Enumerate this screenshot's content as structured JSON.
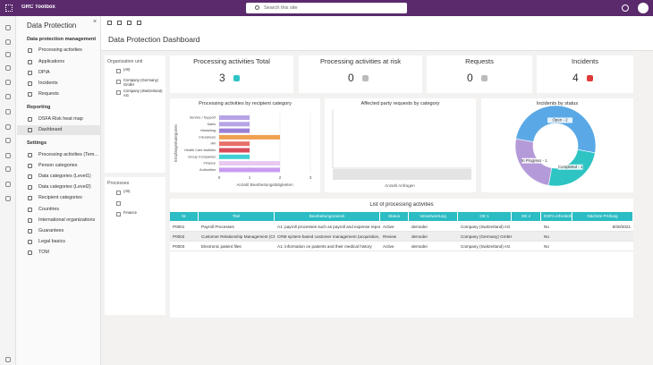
{
  "app": {
    "name": "GRC Toolbox",
    "search_placeholder": "Search this site"
  },
  "nav": {
    "title": "Data Protection",
    "sections": [
      {
        "heading": "Data protection management",
        "items": [
          "Processing activities",
          "Applications",
          "DPIA",
          "Incidents",
          "Requests"
        ]
      },
      {
        "heading": "Reporting",
        "items": [
          "DSFA Risk heat map",
          "Dashboard"
        ]
      },
      {
        "heading": "Settings",
        "items": [
          "Processing activities (Tem...",
          "Person categories",
          "Data categories (Level1)",
          "Data categories (Level2)",
          "Recipient categories",
          "Countries",
          "International organizations",
          "Guarantees",
          "Legal basics",
          "TOM"
        ]
      }
    ]
  },
  "page": {
    "title": "Data Protection Dashboard"
  },
  "filters": [
    {
      "title": "Organization unit",
      "options": [
        "(All)",
        "Company (Germany) GmbH",
        "Company (Switzerland) AG"
      ]
    },
    {
      "title": "Processes",
      "options": [
        "(All)",
        null,
        "Finance"
      ]
    }
  ],
  "kpis": [
    {
      "title": "Processing activities Total",
      "value": 3
    },
    {
      "title": "Processing activities at risk",
      "value": 0
    },
    {
      "title": "Requests",
      "value": 0
    },
    {
      "title": "Incidents",
      "value": 4
    }
  ],
  "charts": [
    {
      "type": "bar",
      "title": "Processing activities by recipient category",
      "x_label": "Anzahl Bearbeitungstätigkeiten",
      "y_label": "Empfängerkategorien",
      "categories": [
        "Service / Support",
        "Sales",
        "Marketing",
        "Insurances",
        "HR",
        "Health Care facilities",
        "Group Companies",
        "Finance",
        "Authorities"
      ],
      "values": [
        1,
        1,
        1,
        2,
        1,
        1,
        1,
        2,
        2
      ],
      "colors": [
        "#b7a4e6",
        "#b7a4e6",
        "#9b7fd6",
        "#f0a050",
        "#e8706a",
        "#d84c5a",
        "#3fd0d4",
        "#e8c8f0",
        "#c89cf0"
      ],
      "xlim": [
        0,
        3
      ],
      "xticks": [
        0,
        1,
        2,
        3
      ]
    },
    {
      "type": "bar",
      "title": "Affected party requests by category",
      "x_label": "Anzahl Anfragen",
      "categories": [],
      "values": []
    },
    {
      "type": "pie",
      "title": "Incidents by status",
      "values": [
        2,
        1,
        1
      ],
      "value_labels": [
        "Open - 2",
        "Completed - 1",
        "In Progress - 1"
      ],
      "colors": [
        "#5aa9e6",
        "#2ec4c4",
        "#b49ad8"
      ]
    }
  ],
  "table": {
    "title": "List of processing activities",
    "columns": [
      "Nr",
      "Titel",
      "Bearbeitungszweck",
      "Status",
      "Verantwortung",
      "OE 1",
      "OE 2",
      "DSFA erforderlich",
      "Nächste Prüfung"
    ],
    "rows": [
      [
        "P0001",
        "Payroll Processes",
        "A1: payroll processes such as payroll and expense reports",
        "Active",
        "demodei",
        "Company (Switzerland) AG",
        null,
        "No",
        "9/30/2021"
      ],
      [
        "P0002",
        "Customer Relationship Management (CRM)",
        "CRM system-based customer management (acquisition, re...",
        "Review",
        "demodei",
        "Company (Germany) GmbH",
        null,
        "No",
        null
      ],
      [
        "P0003",
        "Electronic patient files",
        "A1: information on patients and their medical history",
        "Active",
        "demodei",
        "Company (Switzerland) AG",
        null,
        "No",
        null
      ]
    ]
  }
}
